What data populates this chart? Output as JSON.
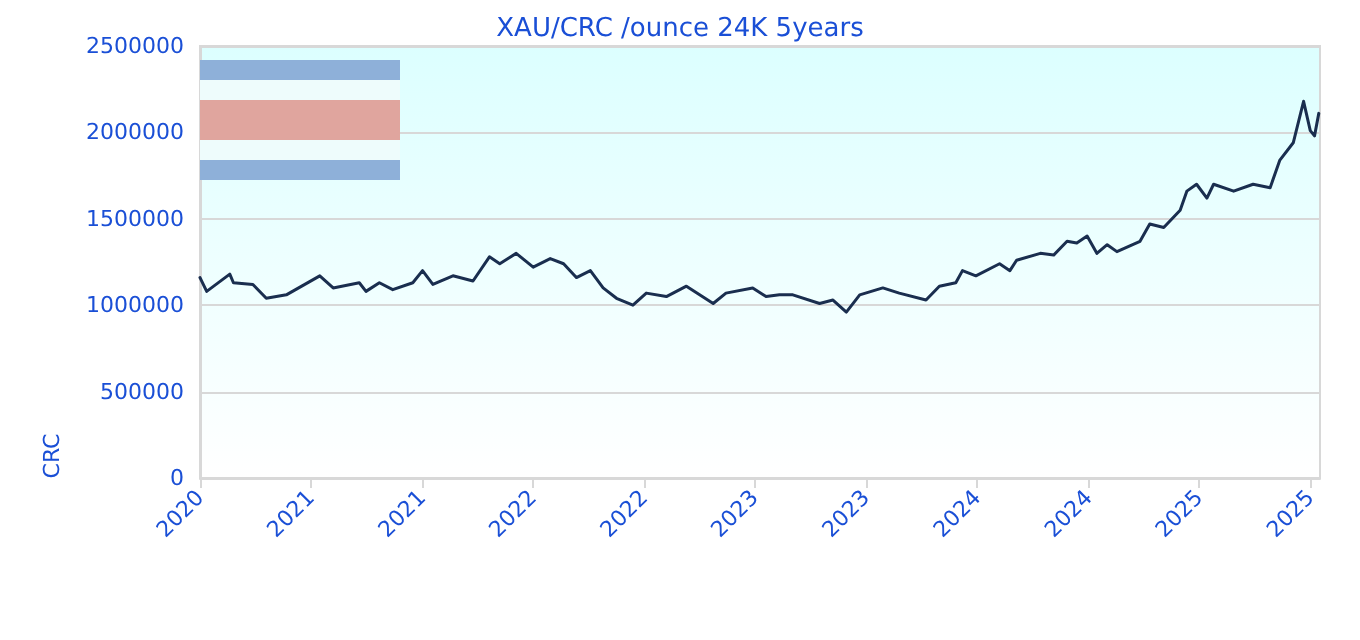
{
  "chart_data": {
    "type": "line",
    "title": "XAU/CRC /ounce 24K 5years",
    "ylabel": "CRC",
    "x": [
      "2020-10-20",
      "2020-10-31",
      "2020-12-08",
      "2020-12-14",
      "2021-01-15",
      "2021-02-06",
      "2021-03-11",
      "2021-05-05",
      "2021-05-27",
      "2021-07-09",
      "2021-07-20",
      "2021-08-11",
      "2021-09-02",
      "2021-10-05",
      "2021-10-21",
      "2021-11-07",
      "2021-12-10",
      "2022-01-12",
      "2022-02-08",
      "2022-02-25",
      "2022-03-24",
      "2022-04-21",
      "2022-05-19",
      "2022-06-10",
      "2022-07-01",
      "2022-07-24",
      "2022-08-14",
      "2022-09-05",
      "2022-10-02",
      "2022-10-24",
      "2022-11-26",
      "2022-12-29",
      "2023-02-11",
      "2023-03-04",
      "2023-04-17",
      "2023-05-09",
      "2023-05-31",
      "2023-06-22",
      "2023-08-05",
      "2023-08-27",
      "2023-09-18",
      "2023-10-10",
      "2023-11-17",
      "2023-12-14",
      "2024-01-27",
      "2024-02-18",
      "2024-03-16",
      "2024-03-27",
      "2024-04-18",
      "2024-05-27",
      "2024-06-13",
      "2024-06-24",
      "2024-08-02",
      "2024-08-24",
      "2024-09-15",
      "2024-10-01",
      "2024-10-18",
      "2024-11-03",
      "2024-11-20",
      "2024-12-06",
      "2025-01-13",
      "2025-01-29",
      "2025-02-21",
      "2025-03-20",
      "2025-03-31",
      "2025-04-16",
      "2025-05-03",
      "2025-05-14",
      "2025-06-16",
      "2025-07-18",
      "2025-08-15",
      "2025-08-31",
      "2025-09-22",
      "2025-10-09",
      "2025-10-20",
      "2025-10-27",
      "2025-11-03"
    ],
    "series": [
      {
        "color": "#1a2e4f",
        "values": [
          1160000,
          1080000,
          1180000,
          1130000,
          1120000,
          1040000,
          1060000,
          1170000,
          1100000,
          1130000,
          1080000,
          1130000,
          1090000,
          1130000,
          1200000,
          1120000,
          1170000,
          1140000,
          1280000,
          1240000,
          1300000,
          1220000,
          1270000,
          1240000,
          1160000,
          1200000,
          1100000,
          1040000,
          1000000,
          1070000,
          1050000,
          1110000,
          1010000,
          1070000,
          1100000,
          1050000,
          1060000,
          1060000,
          1010000,
          1030000,
          960000,
          1060000,
          1100000,
          1070000,
          1030000,
          1110000,
          1130000,
          1200000,
          1170000,
          1240000,
          1200000,
          1260000,
          1300000,
          1290000,
          1370000,
          1360000,
          1400000,
          1300000,
          1350000,
          1310000,
          1370000,
          1470000,
          1450000,
          1550000,
          1660000,
          1700000,
          1620000,
          1700000,
          1660000,
          1700000,
          1680000,
          1840000,
          1940000,
          2180000,
          2010000,
          1980000,
          2110000
        ]
      }
    ],
    "xlim": [
      "2020-10-20",
      "2025-11-05"
    ],
    "xticks": [
      {
        "value": "2020-10-20",
        "label": "2020"
      },
      {
        "value": "2021-04-20",
        "label": "2021"
      },
      {
        "value": "2021-10-20",
        "label": "2021"
      },
      {
        "value": "2022-04-20",
        "label": "2022"
      },
      {
        "value": "2022-10-20",
        "label": "2022"
      },
      {
        "value": "2023-04-20",
        "label": "2023"
      },
      {
        "value": "2023-10-20",
        "label": "2023"
      },
      {
        "value": "2024-04-20",
        "label": "2024"
      },
      {
        "value": "2024-10-20",
        "label": "2024"
      },
      {
        "value": "2025-04-20",
        "label": "2025"
      },
      {
        "value": "2025-10-20",
        "label": "2025"
      }
    ],
    "ylim": [
      0,
      2500000
    ],
    "yticks": [
      0,
      500000,
      1000000,
      1500000,
      2000000,
      2500000
    ],
    "grid": "y",
    "marker": "none",
    "line_style": "solid"
  }
}
